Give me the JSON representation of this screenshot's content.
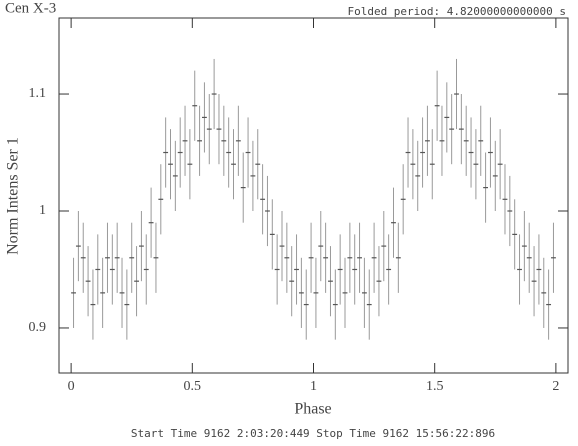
{
  "chart_data": {
    "type": "step",
    "title": "Cen X-3",
    "subtitle": "Folded period: 4.82000000000000 s",
    "x_label": "Phase",
    "y_label": "Norm Intens Ser  1",
    "footer": "Start Time  9162  2:03:20:449    Stop Time  9162 15:56:22:896",
    "color": "#555555",
    "error_color": "#999999",
    "bin_width": 0.02,
    "xlim": [
      -0.05,
      2.05
    ],
    "ylim": [
      0.8615,
      1.165
    ],
    "xticks": [
      0,
      0.5,
      1,
      1.5,
      2
    ],
    "yticks": [
      0.9,
      1,
      1.1
    ],
    "x": [
      0.01,
      0.03,
      0.05,
      0.07,
      0.09,
      0.11,
      0.13,
      0.15,
      0.17,
      0.19,
      0.21,
      0.23,
      0.25,
      0.27,
      0.29,
      0.31,
      0.33,
      0.35,
      0.37,
      0.39,
      0.41,
      0.43,
      0.45,
      0.47,
      0.49,
      0.51,
      0.53,
      0.55,
      0.57,
      0.59,
      0.61,
      0.63,
      0.65,
      0.67,
      0.69,
      0.71,
      0.73,
      0.75,
      0.77,
      0.79,
      0.81,
      0.83,
      0.85,
      0.87,
      0.89,
      0.91,
      0.93,
      0.95,
      0.97,
      0.99,
      1.01,
      1.03,
      1.05,
      1.07,
      1.09,
      1.11,
      1.13,
      1.15,
      1.17,
      1.19,
      1.21,
      1.23,
      1.25,
      1.27,
      1.29,
      1.31,
      1.33,
      1.35,
      1.37,
      1.39,
      1.41,
      1.43,
      1.45,
      1.47,
      1.49,
      1.51,
      1.53,
      1.55,
      1.57,
      1.59,
      1.61,
      1.63,
      1.65,
      1.67,
      1.69,
      1.71,
      1.73,
      1.75,
      1.77,
      1.79,
      1.81,
      1.83,
      1.85,
      1.87,
      1.89,
      1.91,
      1.93,
      1.95,
      1.97,
      1.99
    ],
    "values": [
      0.93,
      0.97,
      0.96,
      0.94,
      0.92,
      0.95,
      0.93,
      0.96,
      0.95,
      0.96,
      0.93,
      0.92,
      0.96,
      0.94,
      0.97,
      0.95,
      0.99,
      0.96,
      1.01,
      1.05,
      1.04,
      1.03,
      1.05,
      1.06,
      1.04,
      1.09,
      1.06,
      1.08,
      1.07,
      1.1,
      1.07,
      1.06,
      1.05,
      1.04,
      1.06,
      1.02,
      1.05,
      1.03,
      1.04,
      1.01,
      1.0,
      0.98,
      0.95,
      0.97,
      0.96,
      0.94,
      0.95,
      0.93,
      0.92,
      0.96,
      0.93,
      0.97,
      0.96,
      0.94,
      0.92,
      0.95,
      0.93,
      0.96,
      0.95,
      0.96,
      0.93,
      0.92,
      0.96,
      0.94,
      0.97,
      0.95,
      0.99,
      0.96,
      1.01,
      1.05,
      1.04,
      1.03,
      1.05,
      1.06,
      1.04,
      1.09,
      1.06,
      1.08,
      1.07,
      1.1,
      1.07,
      1.06,
      1.05,
      1.04,
      1.06,
      1.02,
      1.05,
      1.03,
      1.04,
      1.01,
      1.0,
      0.98,
      0.95,
      0.97,
      0.96,
      0.94,
      0.95,
      0.93,
      0.92,
      0.96
    ],
    "errors": [
      0.03,
      0.03,
      0.03,
      0.03,
      0.03,
      0.03,
      0.03,
      0.03,
      0.03,
      0.03,
      0.03,
      0.03,
      0.03,
      0.03,
      0.03,
      0.03,
      0.03,
      0.03,
      0.03,
      0.03,
      0.03,
      0.03,
      0.03,
      0.03,
      0.03,
      0.03,
      0.03,
      0.03,
      0.03,
      0.03,
      0.03,
      0.03,
      0.03,
      0.03,
      0.03,
      0.03,
      0.03,
      0.03,
      0.03,
      0.03,
      0.03,
      0.03,
      0.03,
      0.03,
      0.03,
      0.03,
      0.03,
      0.03,
      0.03,
      0.03,
      0.03,
      0.03,
      0.03,
      0.03,
      0.03,
      0.03,
      0.03,
      0.03,
      0.03,
      0.03,
      0.03,
      0.03,
      0.03,
      0.03,
      0.03,
      0.03,
      0.03,
      0.03,
      0.03,
      0.03,
      0.03,
      0.03,
      0.03,
      0.03,
      0.03,
      0.03,
      0.03,
      0.03,
      0.03,
      0.03,
      0.03,
      0.03,
      0.03,
      0.03,
      0.03,
      0.03,
      0.03,
      0.03,
      0.03,
      0.03,
      0.03,
      0.03,
      0.03,
      0.03,
      0.03,
      0.03,
      0.03,
      0.03,
      0.03,
      0.03
    ]
  }
}
